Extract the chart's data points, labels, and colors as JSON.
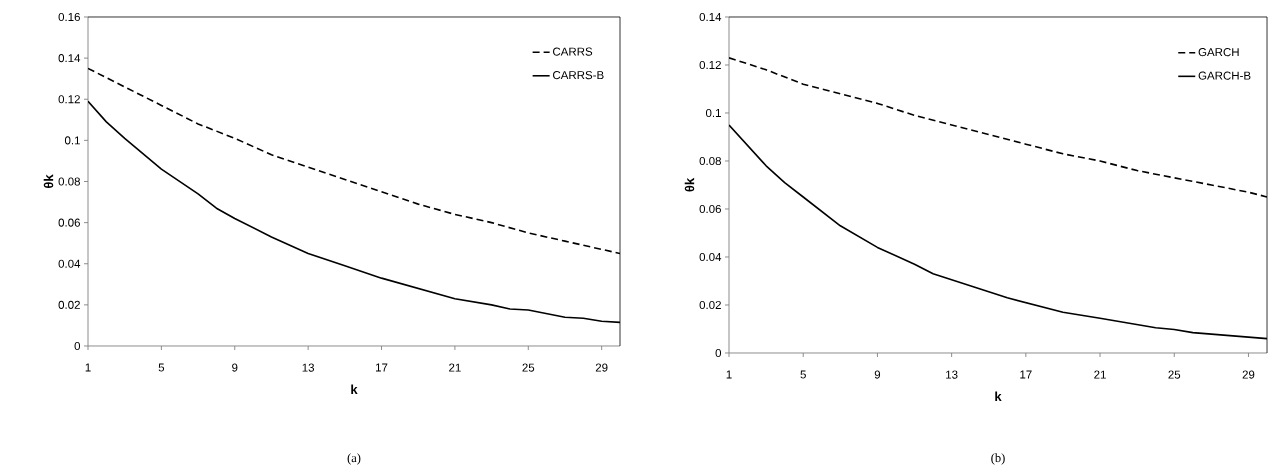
{
  "chart_data": [
    {
      "type": "line",
      "xlabel": "k",
      "ylabel": "θk",
      "annotations": [
        "(a)"
      ],
      "xlim": [
        1,
        30
      ],
      "xticks": [
        1,
        5,
        9,
        13,
        17,
        21,
        25,
        29
      ],
      "ylim": [
        0,
        0.16
      ],
      "yticks": [
        0,
        0.02,
        0.04,
        0.06,
        0.08,
        0.1,
        0.12,
        0.14,
        0.16
      ],
      "legend": "top right",
      "grid": false,
      "marker": "none",
      "series": [
        {
          "name": "CARRS",
          "color": "#000000",
          "line_style": "dashed",
          "x": [
            1,
            3,
            5,
            7,
            9,
            11,
            13,
            15,
            17,
            19,
            21,
            23,
            25,
            27,
            29,
            30
          ],
          "values": [
            0.135,
            0.126,
            0.117,
            0.108,
            0.101,
            0.093,
            0.087,
            0.081,
            0.075,
            0.069,
            0.064,
            0.06,
            0.055,
            0.051,
            0.047,
            0.045
          ]
        },
        {
          "name": "CARRS-B",
          "color": "#000000",
          "line_style": "solid",
          "x": [
            1,
            2,
            3,
            5,
            7,
            8,
            9,
            11,
            13,
            15,
            17,
            19,
            21,
            23,
            24,
            25,
            27,
            28,
            29,
            30
          ],
          "values": [
            0.119,
            0.109,
            0.101,
            0.086,
            0.074,
            0.067,
            0.062,
            0.053,
            0.045,
            0.039,
            0.033,
            0.028,
            0.023,
            0.02,
            0.018,
            0.0175,
            0.014,
            0.0135,
            0.012,
            0.0115
          ]
        }
      ]
    },
    {
      "type": "line",
      "xlabel": "k",
      "ylabel": "θk",
      "annotations": [
        "(b)"
      ],
      "xlim": [
        1,
        30
      ],
      "xticks": [
        1,
        5,
        9,
        13,
        17,
        21,
        25,
        29
      ],
      "ylim": [
        0,
        0.14
      ],
      "yticks": [
        0,
        0.02,
        0.04,
        0.06,
        0.08,
        0.1,
        0.12,
        0.14
      ],
      "legend": "top right",
      "grid": false,
      "marker": "none",
      "series": [
        {
          "name": "GARCH",
          "color": "#000000",
          "line_style": "dashed",
          "x": [
            1,
            3,
            5,
            7,
            9,
            11,
            13,
            15,
            17,
            19,
            21,
            23,
            25,
            27,
            29,
            30
          ],
          "values": [
            0.123,
            0.118,
            0.112,
            0.108,
            0.104,
            0.099,
            0.095,
            0.091,
            0.087,
            0.083,
            0.08,
            0.076,
            0.073,
            0.07,
            0.067,
            0.065
          ]
        },
        {
          "name": "GARCH-B",
          "color": "#000000",
          "line_style": "solid",
          "x": [
            1,
            3,
            4,
            5,
            7,
            9,
            11,
            12,
            14,
            16,
            19,
            21,
            24,
            25,
            26,
            30
          ],
          "values": [
            0.095,
            0.078,
            0.071,
            0.065,
            0.053,
            0.044,
            0.037,
            0.033,
            0.028,
            0.023,
            0.017,
            0.0145,
            0.0105,
            0.0098,
            0.0085,
            0.006
          ]
        }
      ]
    }
  ]
}
